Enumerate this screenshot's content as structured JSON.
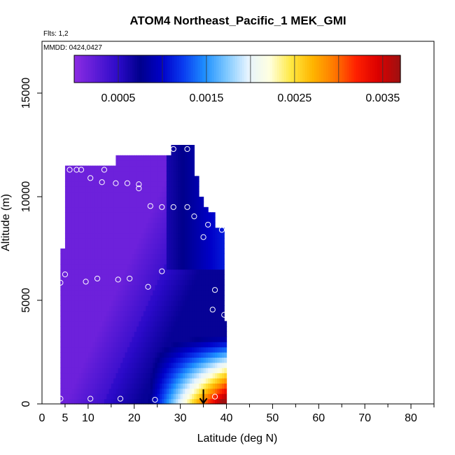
{
  "chart_data": {
    "type": "heatmap",
    "title": "ATOM4 Northeast_Pacific_1 MEK_GMI",
    "flights_note": "Flts: 1,2",
    "dates_note": "MMDD: 0424,0427",
    "xlabel": "Latitude (deg N)",
    "ylabel": "Altitude (m)",
    "xlim": [
      0,
      85
    ],
    "ylim": [
      0,
      17500
    ],
    "x_ticks": [
      0,
      5,
      10,
      20,
      30,
      40,
      50,
      60,
      70,
      80
    ],
    "y_ticks": [
      0,
      5000,
      10000,
      15000
    ],
    "y_tick_labels": [
      "0",
      "5000",
      "10000",
      "15000"
    ],
    "colorbar": {
      "range": [
        0,
        0.0037
      ],
      "ticks": [
        0.0005,
        0.0015,
        0.0025,
        0.0035
      ],
      "tick_labels": [
        "0.0005",
        "0.0015",
        "0.0025",
        "0.0035"
      ],
      "colors": [
        "#8a2be2",
        "#5a1bd6",
        "#2b0ac8",
        "#00008c",
        "#0000c8",
        "#0a3cf0",
        "#1e90ff",
        "#7ec8ff",
        "#e6f4ff",
        "#ffffe0",
        "#ffe840",
        "#ffb400",
        "#ff7800",
        "#ff2000",
        "#dc0000",
        "#a01010"
      ]
    },
    "field_description": "low values at high altitude, increasing toward low altitude at higher latitude",
    "points": [
      {
        "lat": 4,
        "alt": 250
      },
      {
        "lat": 10.5,
        "alt": 250
      },
      {
        "lat": 17,
        "alt": 250
      },
      {
        "lat": 24.5,
        "alt": 200
      },
      {
        "lat": 37.5,
        "alt": 350
      },
      {
        "lat": 4,
        "alt": 5850
      },
      {
        "lat": 5,
        "alt": 6250
      },
      {
        "lat": 9.5,
        "alt": 5900
      },
      {
        "lat": 12,
        "alt": 6050
      },
      {
        "lat": 16.5,
        "alt": 6000
      },
      {
        "lat": 19,
        "alt": 6050
      },
      {
        "lat": 23,
        "alt": 5650
      },
      {
        "lat": 26,
        "alt": 6400
      },
      {
        "lat": 37.5,
        "alt": 5500
      },
      {
        "lat": 37,
        "alt": 4550
      },
      {
        "lat": 39.5,
        "alt": 4300
      },
      {
        "lat": 6,
        "alt": 11300
      },
      {
        "lat": 7.5,
        "alt": 11300
      },
      {
        "lat": 8.5,
        "alt": 11300
      },
      {
        "lat": 10.5,
        "alt": 10900
      },
      {
        "lat": 13.5,
        "alt": 11300
      },
      {
        "lat": 13,
        "alt": 10700
      },
      {
        "lat": 16,
        "alt": 10650
      },
      {
        "lat": 18.5,
        "alt": 10650
      },
      {
        "lat": 21,
        "alt": 10600
      },
      {
        "lat": 21,
        "alt": 10400
      },
      {
        "lat": 23.5,
        "alt": 9550
      },
      {
        "lat": 26,
        "alt": 9500
      },
      {
        "lat": 28.5,
        "alt": 9500
      },
      {
        "lat": 31.5,
        "alt": 9500
      },
      {
        "lat": 33,
        "alt": 9050
      },
      {
        "lat": 36,
        "alt": 8650
      },
      {
        "lat": 35,
        "alt": 8050
      },
      {
        "lat": 39,
        "alt": 8400
      },
      {
        "lat": 28.5,
        "alt": 12300
      },
      {
        "lat": 31.5,
        "alt": 12300
      }
    ],
    "arrow": {
      "lat": 35,
      "alt_from": 700,
      "alt_to": 0
    }
  }
}
